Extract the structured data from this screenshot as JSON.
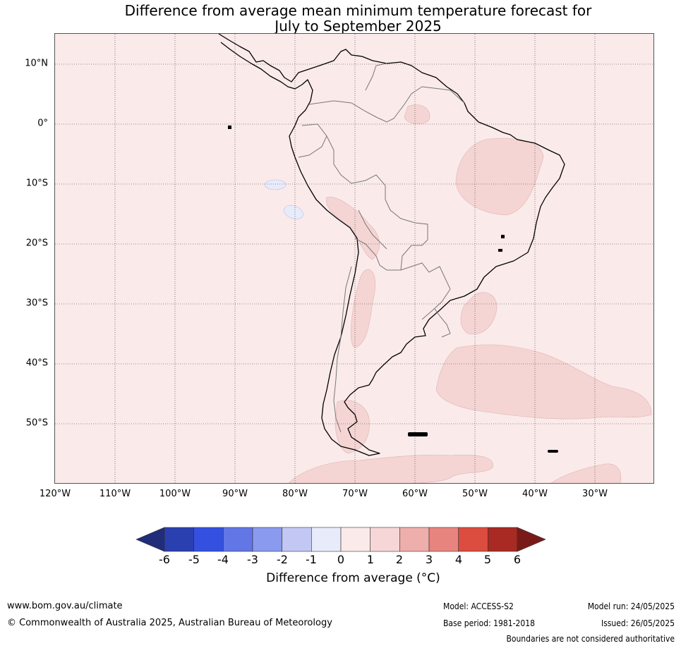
{
  "title_line1": "Difference from average mean minimum temperature forecast for",
  "title_line2": "July to September 2025",
  "latitude_labels": [
    "10°N",
    "0°",
    "10°S",
    "20°S",
    "30°S",
    "40°S",
    "50°S"
  ],
  "longitude_labels": [
    "120°W",
    "110°W",
    "100°W",
    "90°W",
    "80°W",
    "70°W",
    "60°W",
    "50°W",
    "40°W",
    "30°W"
  ],
  "colorbar": {
    "ticks": [
      "-6",
      "-5",
      "-4",
      "-3",
      "-2",
      "-1",
      "0",
      "1",
      "2",
      "3",
      "4",
      "5",
      "6"
    ],
    "label": "Difference from average (°C)",
    "colors": {
      "below_min": "#1f2d7a",
      "c_-6_-5": "#2a3fb0",
      "c_-5_-4": "#3350e0",
      "c_-4_-3": "#6276e6",
      "c_-3_-2": "#8a9aee",
      "c_-2_-1": "#c2c8f3",
      "c_-1_0": "#e8ebfa",
      "c_0_1": "#fbeaea",
      "c_1_2": "#f6d6d6",
      "c_2_3": "#eeaeab",
      "c_3_4": "#e8847e",
      "c_4_5": "#dc4c3f",
      "c_5_6": "#a82a22",
      "above_max": "#7a1a18"
    }
  },
  "footer": {
    "website": "www.bom.gov.au/climate",
    "copyright": "© Commonwealth of Australia 2025, Australian Bureau of Meteorology",
    "model": "Model: ACCESS-S2",
    "base_period": "Base period: 1981-2018",
    "model_run": "Model run: 24/05/2025",
    "issued": "Issued: 26/05/2025",
    "disclaimer": "Boundaries are not considered authoritative"
  }
}
